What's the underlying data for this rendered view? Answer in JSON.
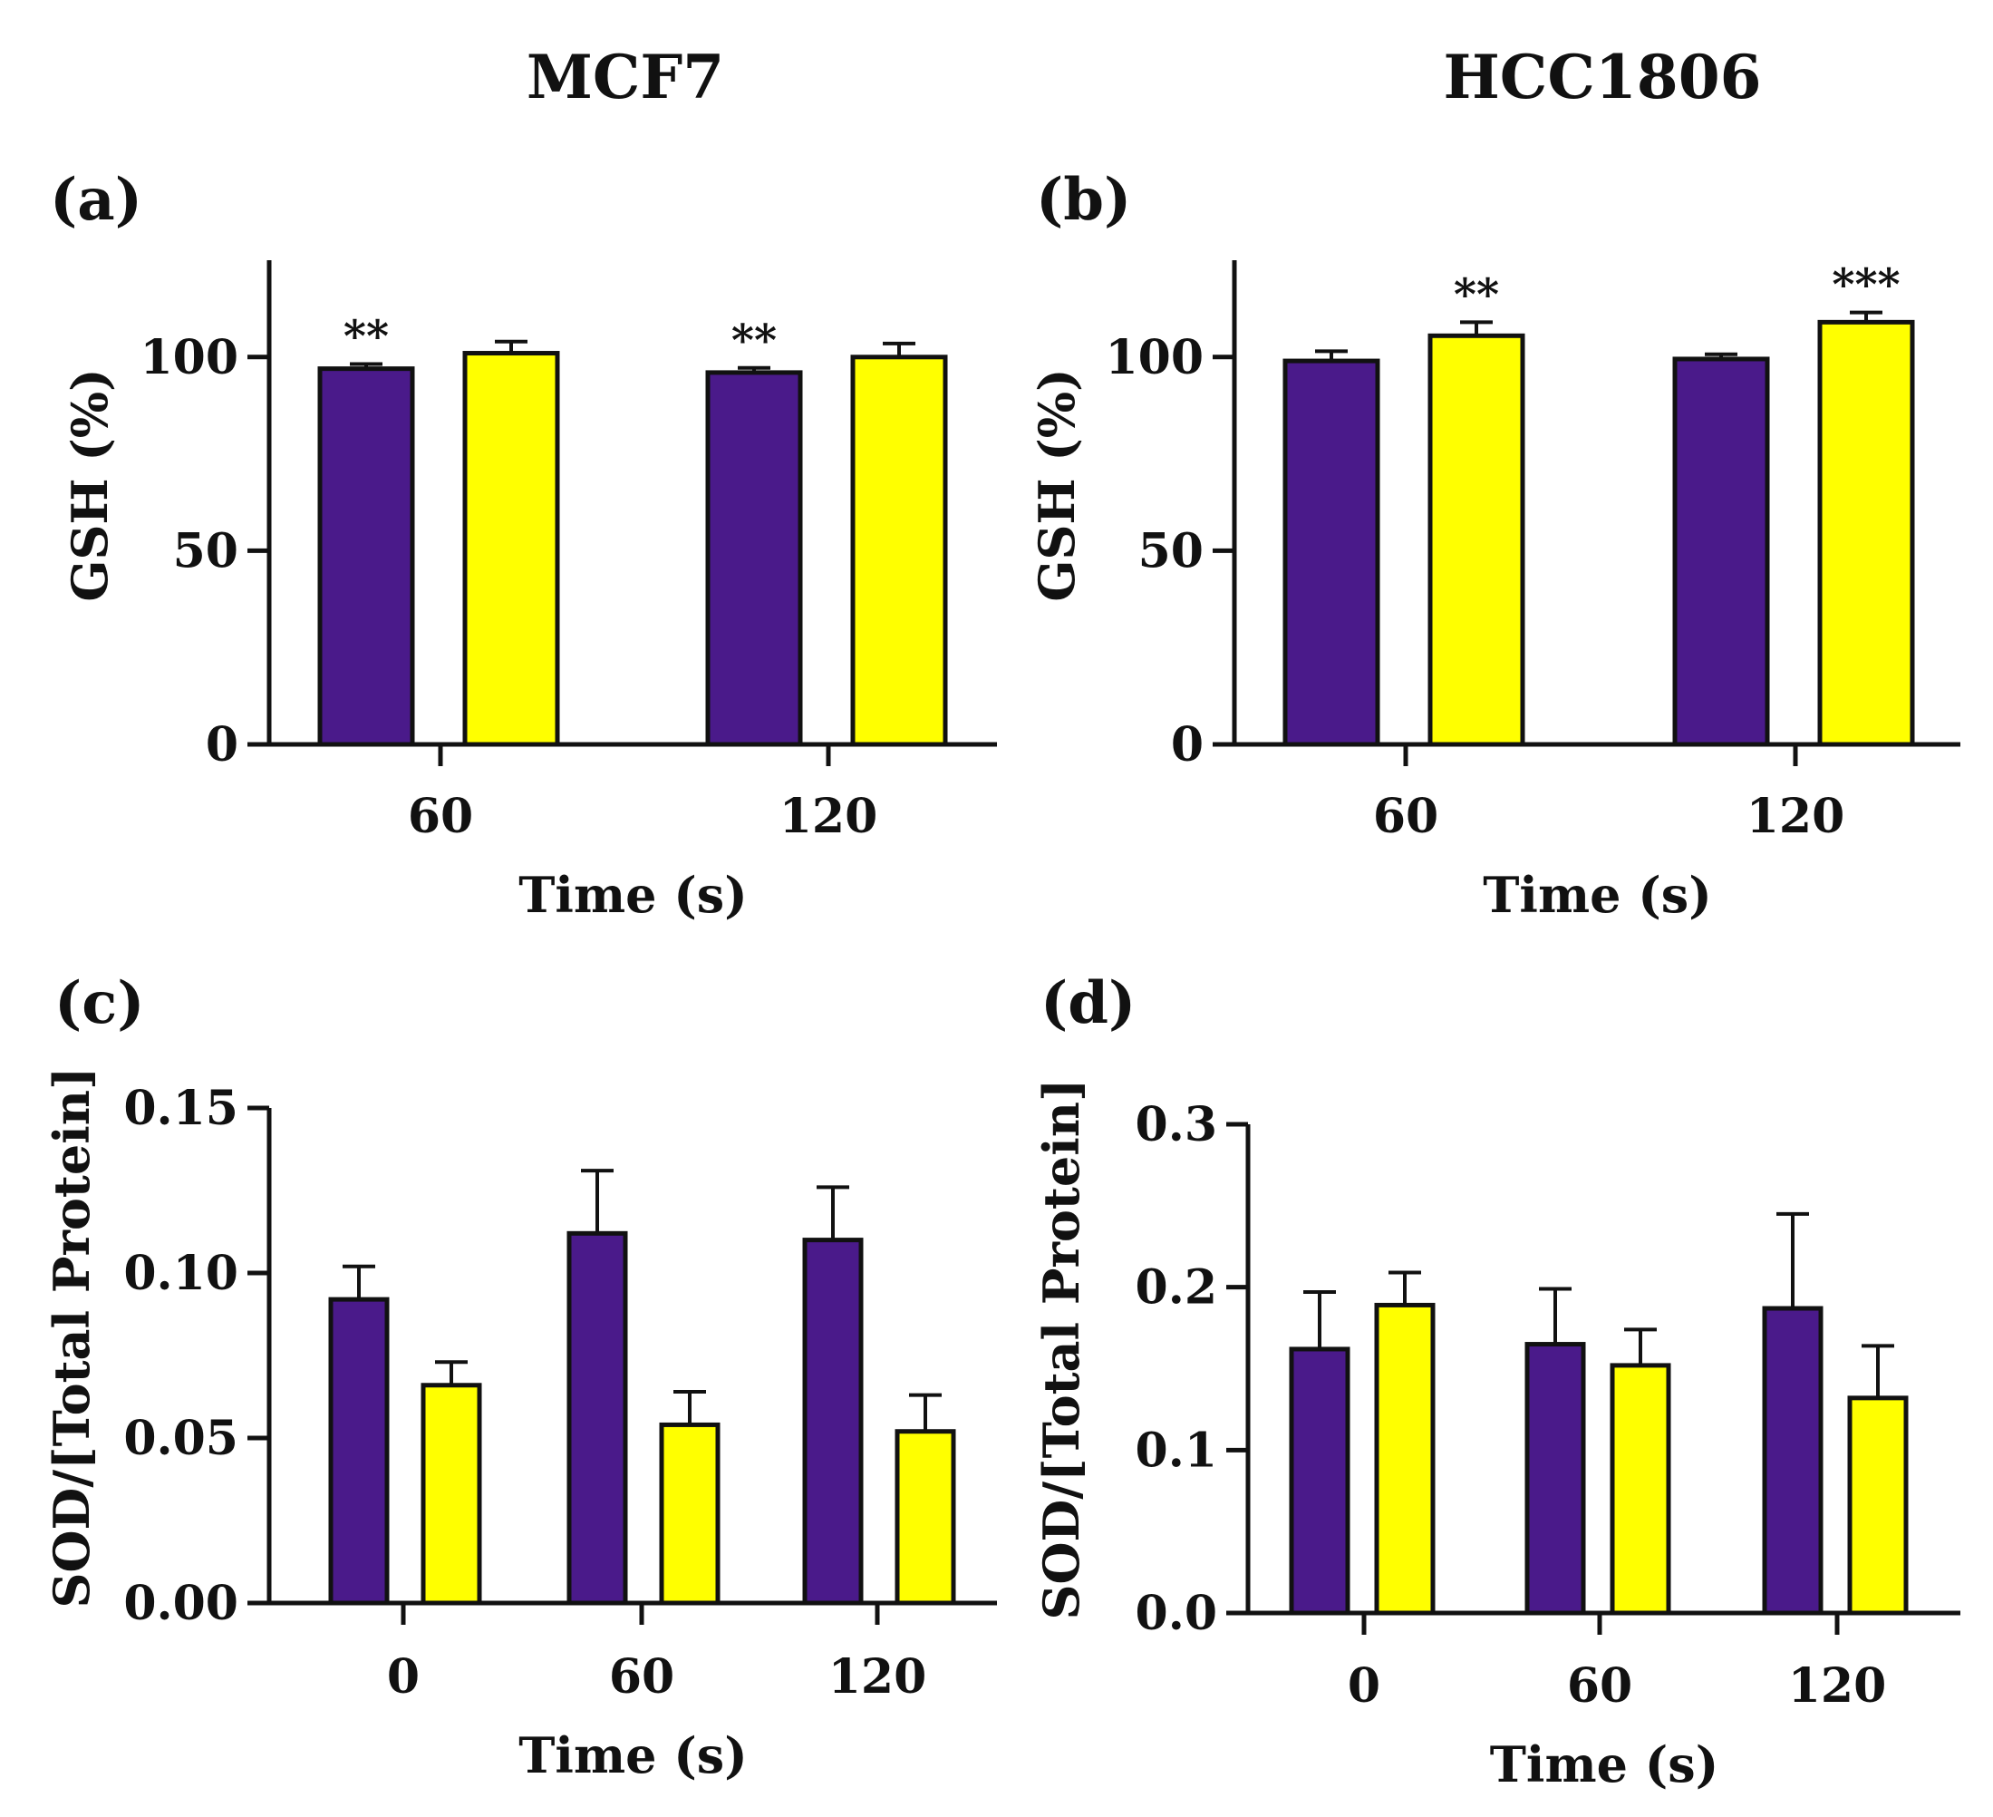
{
  "titles": {
    "left": "MCF7",
    "right": "HCC1806"
  },
  "colors": {
    "purple": "#4a1a8a",
    "yellow": "#ffff00",
    "axis": "#111111",
    "outline": "#111111"
  },
  "chart_data": [
    {
      "id": "a",
      "panel_label": "(a)",
      "type": "bar",
      "title": "",
      "xlabel": "Time (s)",
      "ylabel": "GSH (%)",
      "ylim": [
        0,
        125
      ],
      "yticks": [
        0,
        50,
        100
      ],
      "ytick_labels": [
        "0",
        "50",
        "100"
      ],
      "categories": [
        "60",
        "120"
      ],
      "series": [
        {
          "name": "purple",
          "color": "#4a1a8a",
          "values": [
            97,
            96
          ],
          "errors": [
            1.2,
            1.2
          ],
          "annotations": [
            "**",
            "**"
          ]
        },
        {
          "name": "yellow",
          "color": "#ffff00",
          "values": [
            101,
            100
          ],
          "errors": [
            3,
            3.5
          ],
          "annotations": [
            "",
            ""
          ]
        }
      ]
    },
    {
      "id": "b",
      "panel_label": "(b)",
      "type": "bar",
      "title": "",
      "xlabel": "Time (s)",
      "ylabel": "GSH (%)",
      "ylim": [
        0,
        125
      ],
      "yticks": [
        0,
        50,
        100
      ],
      "ytick_labels": [
        "0",
        "50",
        "100"
      ],
      "categories": [
        "60",
        "120"
      ],
      "series": [
        {
          "name": "purple",
          "color": "#4a1a8a",
          "values": [
            99,
            99.5
          ],
          "errors": [
            2.5,
            1.2
          ],
          "annotations": [
            "",
            ""
          ]
        },
        {
          "name": "yellow",
          "color": "#ffff00",
          "values": [
            105.5,
            109
          ],
          "errors": [
            3.5,
            2.5
          ],
          "annotations": [
            "**",
            "***"
          ]
        }
      ]
    },
    {
      "id": "c",
      "panel_label": "(c)",
      "type": "bar",
      "title": "",
      "xlabel": "Time (s)",
      "ylabel": "SOD/[Total Protein]",
      "ylim": [
        0,
        0.15
      ],
      "yticks": [
        0,
        0.05,
        0.1,
        0.15
      ],
      "ytick_labels": [
        "0.00",
        "0.05",
        "0.10",
        "0.15"
      ],
      "categories": [
        "0",
        "60",
        "120"
      ],
      "series": [
        {
          "name": "purple",
          "color": "#4a1a8a",
          "values": [
            0.092,
            0.112,
            0.11
          ],
          "errors": [
            0.01,
            0.019,
            0.016
          ],
          "annotations": [
            "",
            "",
            ""
          ]
        },
        {
          "name": "yellow",
          "color": "#ffff00",
          "values": [
            0.066,
            0.054,
            0.052
          ],
          "errors": [
            0.007,
            0.01,
            0.011
          ],
          "annotations": [
            "",
            "",
            ""
          ]
        }
      ]
    },
    {
      "id": "d",
      "panel_label": "(d)",
      "type": "bar",
      "title": "",
      "xlabel": "Time (s)",
      "ylabel": "SOD/[Total Protein]",
      "ylim": [
        0,
        0.3
      ],
      "yticks": [
        0,
        0.1,
        0.2,
        0.3
      ],
      "ytick_labels": [
        "0.0",
        "0.1",
        "0.2",
        "0.3"
      ],
      "categories": [
        "0",
        "60",
        "120"
      ],
      "series": [
        {
          "name": "purple",
          "color": "#4a1a8a",
          "values": [
            0.162,
            0.165,
            0.187
          ],
          "errors": [
            0.035,
            0.034,
            0.058
          ],
          "annotations": [
            "",
            "",
            ""
          ]
        },
        {
          "name": "yellow",
          "color": "#ffff00",
          "values": [
            0.189,
            0.152,
            0.132
          ],
          "errors": [
            0.02,
            0.022,
            0.032
          ],
          "annotations": [
            "",
            "",
            ""
          ]
        }
      ]
    }
  ]
}
